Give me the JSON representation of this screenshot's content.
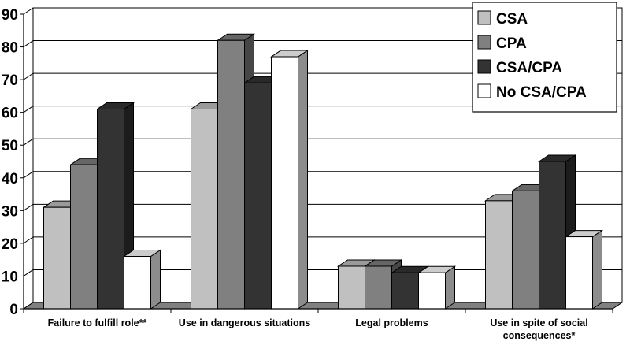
{
  "chart_data": {
    "type": "bar",
    "style": "3d-clustered-column",
    "categories": [
      [
        "Failure to fulfill role**"
      ],
      [
        "Use in dangerous situations"
      ],
      [
        "Legal problems"
      ],
      [
        "Use in spite of social",
        "consequences*"
      ]
    ],
    "series": [
      {
        "name": "CSA",
        "color": "#c0c0c0",
        "values": [
          31,
          61,
          13,
          33
        ]
      },
      {
        "name": "CPA",
        "color": "#808080",
        "values": [
          44,
          82,
          13,
          36
        ]
      },
      {
        "name": "CSA/CPA",
        "color": "#333333",
        "values": [
          61,
          69,
          11,
          45
        ]
      },
      {
        "name": "No CSA/CPA",
        "color": "#ffffff",
        "values": [
          16,
          77,
          11,
          22
        ]
      }
    ],
    "ylim": [
      0,
      90
    ],
    "yticks": [
      "0",
      "10",
      "20",
      "30",
      "40",
      "50",
      "60",
      "70",
      "80",
      "90"
    ],
    "grid": true,
    "legend": "top-right",
    "title": "",
    "xlabel": "",
    "ylabel": ""
  }
}
